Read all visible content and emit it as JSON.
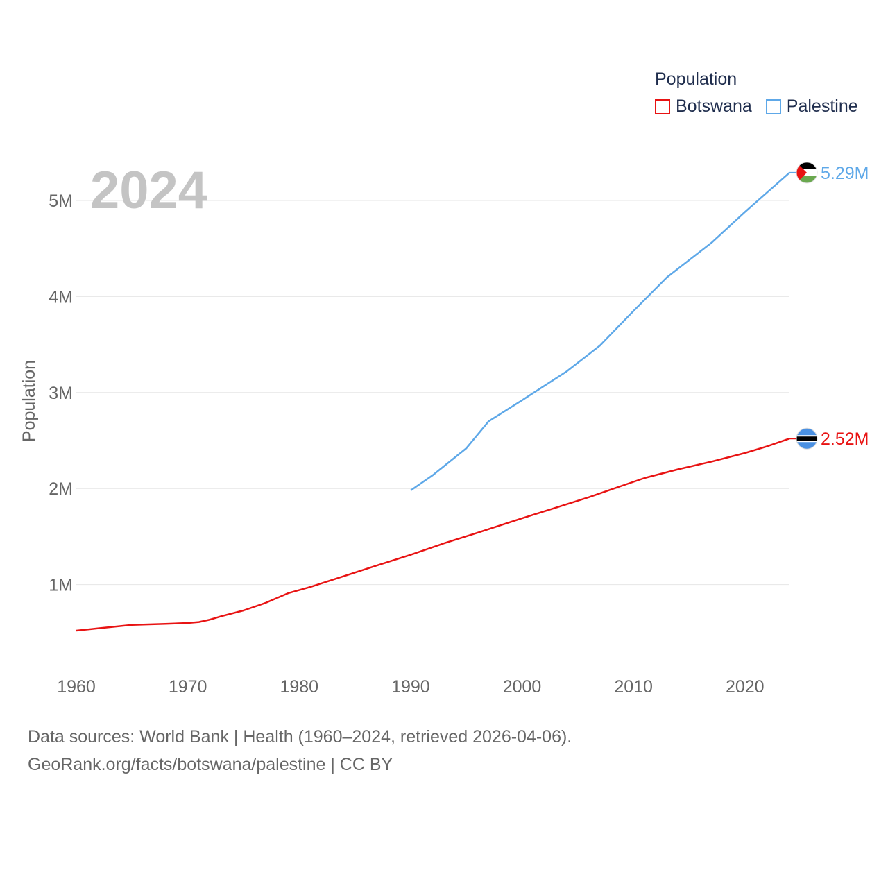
{
  "year_label": "2024",
  "legend": {
    "title": "Population",
    "items": [
      {
        "name": "Botswana",
        "color": "#e81313"
      },
      {
        "name": "Palestine",
        "color": "#5ea8e8"
      }
    ]
  },
  "footer": {
    "line1": "Data sources: World Bank | Health (1960–2024, retrieved 2026-04-06).",
    "line2": "GeoRank.org/facts/botswana/palestine | CC BY"
  },
  "chart_data": {
    "type": "line",
    "title": "",
    "xlabel": "",
    "ylabel": "Population",
    "xlim": [
      1960,
      2024
    ],
    "ylim": [
      0,
      5500000
    ],
    "x_ticks": [
      1960,
      1970,
      1980,
      1990,
      2000,
      2010,
      2020
    ],
    "y_ticks": [
      {
        "value": 1000000,
        "label": "1M"
      },
      {
        "value": 2000000,
        "label": "2M"
      },
      {
        "value": 3000000,
        "label": "3M"
      },
      {
        "value": 4000000,
        "label": "4M"
      },
      {
        "value": 5000000,
        "label": "5M"
      }
    ],
    "series": [
      {
        "name": "Botswana",
        "color": "#e81313",
        "end_label": "2.52M",
        "flag": "botswana",
        "points": [
          [
            1960,
            520000
          ],
          [
            1962,
            545000
          ],
          [
            1965,
            580000
          ],
          [
            1968,
            590000
          ],
          [
            1970,
            600000
          ],
          [
            1971,
            610000
          ],
          [
            1972,
            635000
          ],
          [
            1973,
            670000
          ],
          [
            1975,
            730000
          ],
          [
            1977,
            810000
          ],
          [
            1979,
            910000
          ],
          [
            1981,
            975000
          ],
          [
            1983,
            1050000
          ],
          [
            1985,
            1125000
          ],
          [
            1987,
            1200000
          ],
          [
            1990,
            1310000
          ],
          [
            1993,
            1430000
          ],
          [
            1996,
            1540000
          ],
          [
            2000,
            1690000
          ],
          [
            2003,
            1800000
          ],
          [
            2006,
            1910000
          ],
          [
            2009,
            2030000
          ],
          [
            2011,
            2110000
          ],
          [
            2014,
            2200000
          ],
          [
            2017,
            2280000
          ],
          [
            2020,
            2370000
          ],
          [
            2022,
            2440000
          ],
          [
            2024,
            2520000
          ]
        ]
      },
      {
        "name": "Palestine",
        "color": "#5ea8e8",
        "end_label": "5.29M",
        "flag": "palestine",
        "points": [
          [
            1990,
            1980000
          ],
          [
            1992,
            2140000
          ],
          [
            1995,
            2420000
          ],
          [
            1997,
            2700000
          ],
          [
            2000,
            2920000
          ],
          [
            2004,
            3220000
          ],
          [
            2007,
            3490000
          ],
          [
            2010,
            3850000
          ],
          [
            2013,
            4200000
          ],
          [
            2017,
            4560000
          ],
          [
            2020,
            4880000
          ],
          [
            2024,
            5290000
          ]
        ]
      }
    ]
  },
  "source_data": {
    "icons": [
      "botswana-flag-icon",
      "palestine-flag-icon"
    ]
  }
}
